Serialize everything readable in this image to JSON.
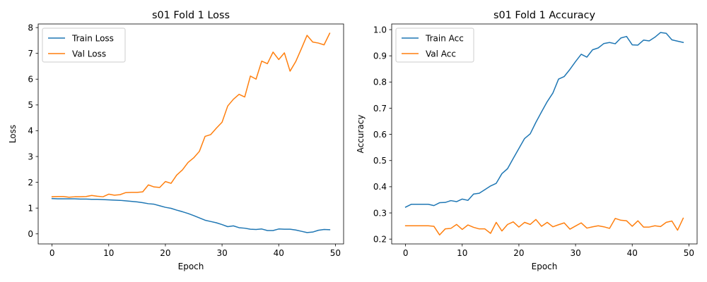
{
  "chart_data": [
    {
      "type": "line",
      "title": "s01 Fold 1 Loss",
      "xlabel": "Epoch",
      "ylabel": "Loss",
      "xlim": [
        -2.45,
        51.45
      ],
      "ylim": [
        -0.39,
        8.14
      ],
      "xticks": [
        0,
        10,
        20,
        30,
        40,
        50
      ],
      "yticks": [
        0,
        1,
        2,
        3,
        4,
        5,
        6,
        7,
        8
      ],
      "grid": false,
      "legend": "upper-left",
      "series": [
        {
          "name": "Train Loss",
          "color": "#1f77b4",
          "x": [
            0,
            1,
            2,
            3,
            4,
            5,
            6,
            7,
            8,
            9,
            10,
            11,
            12,
            13,
            14,
            15,
            16,
            17,
            18,
            19,
            20,
            21,
            22,
            23,
            24,
            25,
            26,
            27,
            28,
            29,
            30,
            31,
            32,
            33,
            34,
            35,
            36,
            37,
            38,
            39,
            40,
            41,
            42,
            43,
            44,
            45,
            46,
            47,
            48,
            49
          ],
          "values": [
            1.37,
            1.36,
            1.36,
            1.36,
            1.36,
            1.35,
            1.35,
            1.34,
            1.34,
            1.33,
            1.32,
            1.31,
            1.3,
            1.28,
            1.26,
            1.24,
            1.21,
            1.17,
            1.15,
            1.09,
            1.03,
            0.99,
            0.92,
            0.86,
            0.79,
            0.71,
            0.62,
            0.53,
            0.48,
            0.43,
            0.36,
            0.28,
            0.31,
            0.24,
            0.22,
            0.18,
            0.17,
            0.19,
            0.13,
            0.13,
            0.19,
            0.18,
            0.18,
            0.15,
            0.1,
            0.05,
            0.07,
            0.14,
            0.17,
            0.16
          ]
        },
        {
          "name": "Val Loss",
          "color": "#ff7f0e",
          "x": [
            0,
            1,
            2,
            3,
            4,
            5,
            6,
            7,
            8,
            9,
            10,
            11,
            12,
            13,
            14,
            15,
            16,
            17,
            18,
            19,
            20,
            21,
            22,
            23,
            24,
            25,
            26,
            27,
            28,
            29,
            30,
            31,
            32,
            33,
            34,
            35,
            36,
            37,
            38,
            39,
            40,
            41,
            42,
            43,
            44,
            45,
            46,
            47,
            48,
            49
          ],
          "values": [
            1.44,
            1.45,
            1.45,
            1.42,
            1.44,
            1.44,
            1.45,
            1.49,
            1.46,
            1.44,
            1.54,
            1.5,
            1.52,
            1.6,
            1.61,
            1.61,
            1.63,
            1.9,
            1.82,
            1.8,
            2.03,
            1.96,
            2.28,
            2.48,
            2.77,
            2.95,
            3.2,
            3.78,
            3.85,
            4.1,
            4.33,
            4.96,
            5.22,
            5.41,
            5.31,
            6.12,
            6.0,
            6.7,
            6.6,
            7.05,
            6.76,
            7.02,
            6.31,
            6.68,
            7.18,
            7.7,
            7.44,
            7.4,
            7.33,
            7.78
          ]
        }
      ]
    },
    {
      "type": "line",
      "title": "s01 Fold 1 Accuracy",
      "xlabel": "Epoch",
      "ylabel": "Accuracy",
      "xlim": [
        -2.45,
        51.45
      ],
      "ylim": [
        0.1816,
        1.0216
      ],
      "xticks": [
        0,
        10,
        20,
        30,
        40,
        50
      ],
      "yticks": [
        0.2,
        0.3,
        0.4,
        0.5,
        0.6,
        0.7,
        0.8,
        0.9,
        1.0
      ],
      "ytick_labels": [
        "0.2",
        "0.3",
        "0.4",
        "0.5",
        "0.6",
        "0.7",
        "0.8",
        "0.9",
        "1.0"
      ],
      "grid": false,
      "legend": "upper-left",
      "series": [
        {
          "name": "Train Acc",
          "color": "#1f77b4",
          "x": [
            0,
            1,
            2,
            3,
            4,
            5,
            6,
            7,
            8,
            9,
            10,
            11,
            12,
            13,
            14,
            15,
            16,
            17,
            18,
            19,
            20,
            21,
            22,
            23,
            24,
            25,
            26,
            27,
            28,
            29,
            30,
            31,
            32,
            33,
            34,
            35,
            36,
            37,
            38,
            39,
            40,
            41,
            42,
            43,
            44,
            45,
            46,
            47,
            48,
            49
          ],
          "values": [
            0.322,
            0.333,
            0.333,
            0.333,
            0.333,
            0.328,
            0.339,
            0.34,
            0.347,
            0.343,
            0.353,
            0.348,
            0.372,
            0.375,
            0.389,
            0.403,
            0.413,
            0.45,
            0.469,
            0.508,
            0.546,
            0.584,
            0.602,
            0.646,
            0.686,
            0.725,
            0.758,
            0.811,
            0.821,
            0.848,
            0.878,
            0.906,
            0.895,
            0.923,
            0.93,
            0.947,
            0.951,
            0.946,
            0.968,
            0.974,
            0.942,
            0.941,
            0.96,
            0.957,
            0.971,
            0.989,
            0.986,
            0.961,
            0.956,
            0.951
          ]
        },
        {
          "name": "Val Acc",
          "color": "#ff7f0e",
          "x": [
            0,
            1,
            2,
            3,
            4,
            5,
            6,
            7,
            8,
            9,
            10,
            11,
            12,
            13,
            14,
            15,
            16,
            17,
            18,
            19,
            20,
            21,
            22,
            23,
            24,
            25,
            26,
            27,
            28,
            29,
            30,
            31,
            32,
            33,
            34,
            35,
            36,
            37,
            38,
            39,
            40,
            41,
            42,
            43,
            44,
            45,
            46,
            47,
            48,
            49
          ],
          "values": [
            0.251,
            0.251,
            0.251,
            0.251,
            0.251,
            0.249,
            0.216,
            0.239,
            0.241,
            0.256,
            0.237,
            0.254,
            0.245,
            0.239,
            0.239,
            0.222,
            0.264,
            0.231,
            0.256,
            0.266,
            0.246,
            0.264,
            0.256,
            0.275,
            0.249,
            0.264,
            0.247,
            0.255,
            0.262,
            0.238,
            0.25,
            0.262,
            0.242,
            0.247,
            0.251,
            0.247,
            0.241,
            0.279,
            0.272,
            0.27,
            0.249,
            0.27,
            0.246,
            0.246,
            0.251,
            0.248,
            0.264,
            0.269,
            0.234,
            0.28
          ]
        }
      ]
    }
  ]
}
